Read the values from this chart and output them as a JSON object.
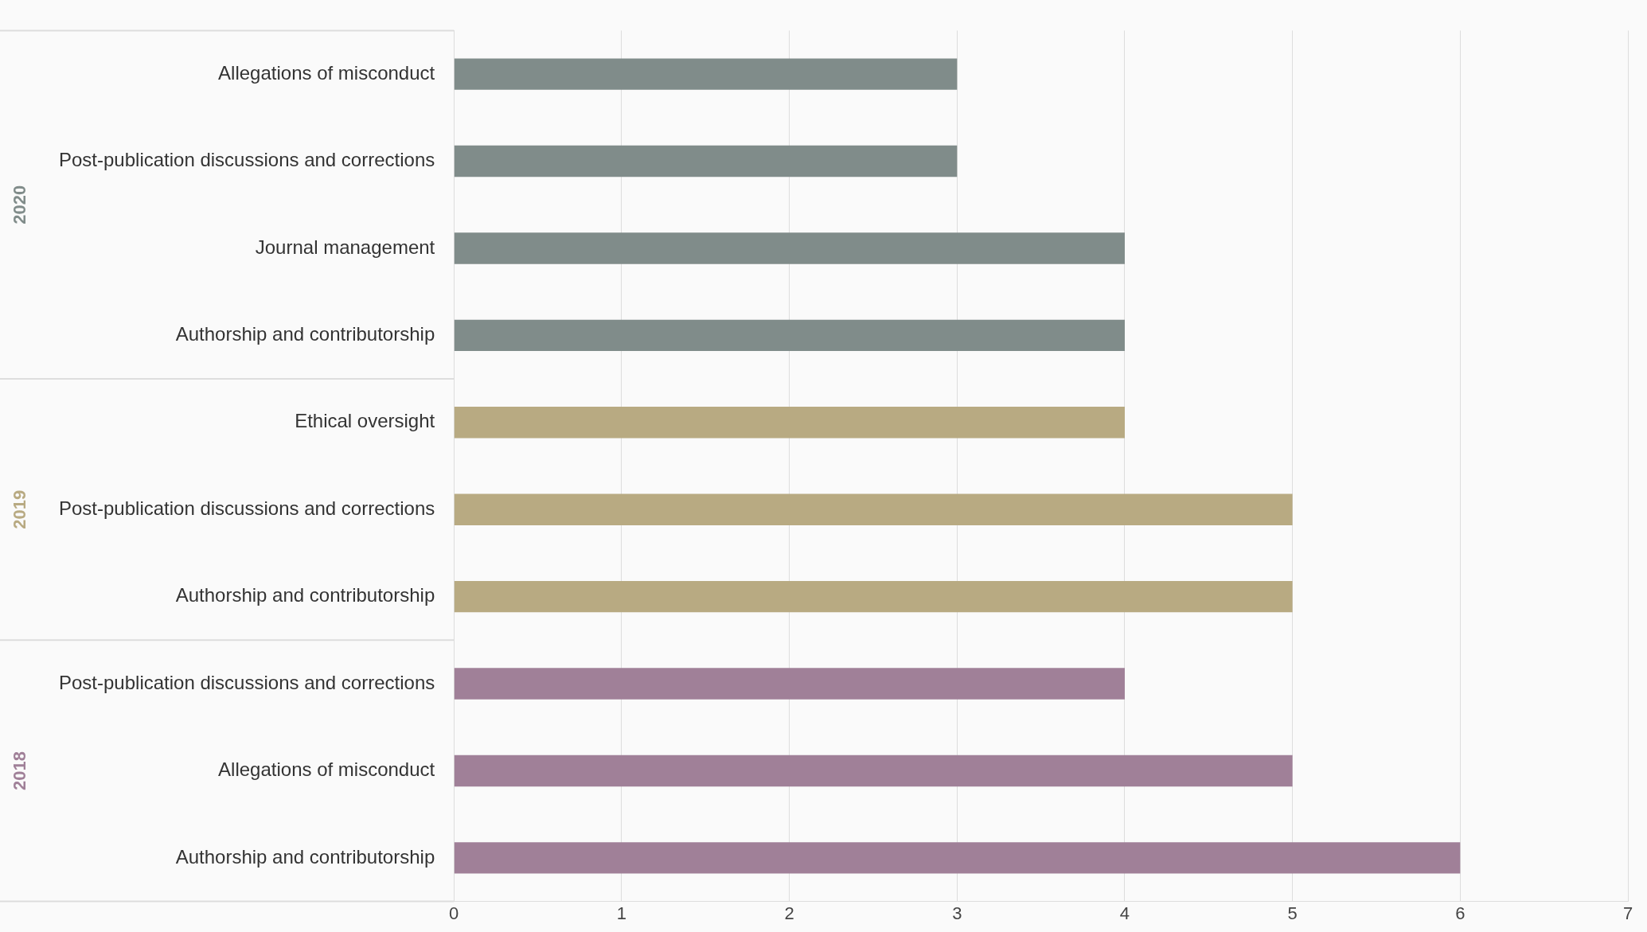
{
  "chart_data": {
    "type": "bar",
    "orientation": "horizontal",
    "stacked": true,
    "categories": [
      "Allegations of misconduct",
      "Post-publication discussions and corrections",
      "Journal management",
      "Authorship and contributorship",
      "Ethical oversight",
      "Post-publication discussions and corrections",
      "Authorship and contributorship",
      "Post-publication discussions and corrections",
      "Allegations of misconduct",
      "Authorship and contributorship"
    ],
    "series": [
      {
        "name": "2020",
        "color": "#808c8a",
        "values": [
          3,
          3,
          4,
          4,
          null,
          null,
          null,
          null,
          null,
          null
        ]
      },
      {
        "name": "2019",
        "color": "#b8aa82",
        "values": [
          null,
          null,
          null,
          null,
          4,
          5,
          5,
          null,
          null,
          null
        ]
      },
      {
        "name": "2018",
        "color": "#a08098",
        "values": [
          null,
          null,
          null,
          null,
          null,
          null,
          null,
          4,
          5,
          6
        ]
      }
    ],
    "xlim": [
      0,
      7
    ],
    "xticks": [
      0,
      1,
      2,
      3,
      4,
      5,
      6,
      7
    ],
    "grid": "x",
    "legend": false
  }
}
